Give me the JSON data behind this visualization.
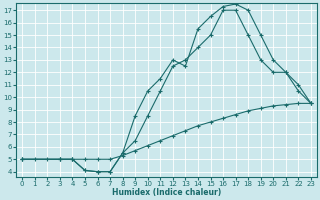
{
  "xlabel": "Humidex (Indice chaleur)",
  "bg_color": "#cce8ec",
  "grid_color": "#b0d8dc",
  "line_color": "#1a6b6b",
  "xlim": [
    -0.5,
    23.5
  ],
  "ylim": [
    3.6,
    17.6
  ],
  "xticks": [
    0,
    1,
    2,
    3,
    4,
    5,
    6,
    7,
    8,
    9,
    10,
    11,
    12,
    13,
    14,
    15,
    16,
    17,
    18,
    19,
    20,
    21,
    22,
    23
  ],
  "yticks": [
    4,
    5,
    6,
    7,
    8,
    9,
    10,
    11,
    12,
    13,
    14,
    15,
    16,
    17
  ],
  "line_straight_x": [
    0,
    1,
    2,
    3,
    4,
    5,
    6,
    7,
    8,
    9,
    10,
    11,
    12,
    13,
    14,
    15,
    16,
    17,
    18,
    19,
    20,
    21,
    22,
    23
  ],
  "line_straight_y": [
    5.0,
    5.0,
    5.0,
    5.0,
    5.0,
    5.0,
    5.0,
    5.0,
    5.3,
    5.7,
    6.1,
    6.5,
    6.9,
    7.3,
    7.7,
    8.0,
    8.3,
    8.6,
    8.9,
    9.1,
    9.3,
    9.4,
    9.5,
    9.5
  ],
  "line_top_x": [
    0,
    3,
    4,
    5,
    6,
    7,
    8,
    9,
    10,
    11,
    12,
    13,
    14,
    15,
    16,
    17,
    18,
    19,
    20,
    21,
    22,
    23
  ],
  "line_top_y": [
    5.0,
    5.0,
    5.0,
    4.1,
    4.0,
    4.0,
    5.5,
    8.5,
    10.5,
    11.5,
    13.0,
    12.5,
    15.5,
    16.5,
    17.3,
    17.5,
    17.0,
    15.0,
    13.0,
    12.0,
    11.0,
    9.5
  ],
  "line_mid_x": [
    0,
    3,
    4,
    5,
    6,
    7,
    8,
    9,
    10,
    11,
    12,
    13,
    14,
    15,
    16,
    17,
    18,
    19,
    20,
    21,
    22,
    23
  ],
  "line_mid_y": [
    5.0,
    5.0,
    5.0,
    4.1,
    4.0,
    4.0,
    5.5,
    6.5,
    8.5,
    10.5,
    12.5,
    13.0,
    14.0,
    15.0,
    17.0,
    17.0,
    15.0,
    13.0,
    12.0,
    12.0,
    10.5,
    9.5
  ]
}
